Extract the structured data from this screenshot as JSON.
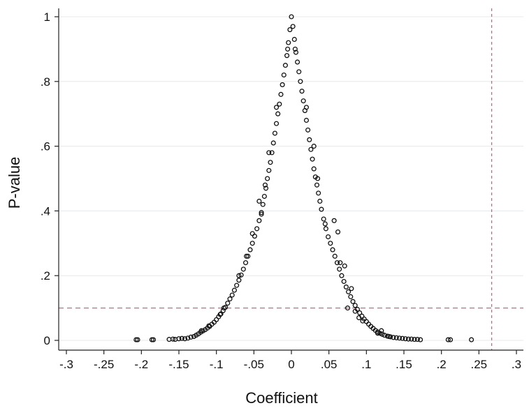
{
  "chart_data": {
    "type": "scatter",
    "title": "",
    "xlabel": "Coefficient",
    "ylabel": "P-value",
    "xlim": [
      -0.3,
      0.3
    ],
    "ylim": [
      0,
      1
    ],
    "x_ticks": [
      -0.3,
      -0.25,
      -0.2,
      -0.15,
      -0.1,
      -0.05,
      0,
      0.05,
      0.1,
      0.15,
      0.2,
      0.25,
      0.3
    ],
    "x_tick_labels": [
      "-.3",
      "-.25",
      "-.2",
      "-.15",
      "-.1",
      "-.05",
      "0",
      ".05",
      ".1",
      ".15",
      ".2",
      ".25",
      ".3"
    ],
    "y_ticks": [
      0,
      0.2,
      0.4,
      0.6,
      0.8,
      1
    ],
    "y_tick_labels": [
      "0",
      ".2",
      ".4",
      ".6",
      ".8",
      "1"
    ],
    "grid": "horizontal",
    "marker": "hollow-circle",
    "reference_lines": [
      {
        "orientation": "horizontal",
        "value": 0.1,
        "style": "dashed",
        "color": "#d4607c"
      },
      {
        "orientation": "vertical",
        "value": 0.267,
        "style": "dashed",
        "color": "#d4607c"
      }
    ],
    "series": [
      {
        "points": [
          [
            -0.207,
            0.002
          ],
          [
            -0.205,
            0.002
          ],
          [
            -0.186,
            0.002
          ],
          [
            -0.184,
            0.002
          ],
          [
            -0.163,
            0.003
          ],
          [
            -0.158,
            0.004
          ],
          [
            -0.155,
            0.003
          ],
          [
            -0.15,
            0.005
          ],
          [
            -0.146,
            0.006
          ],
          [
            -0.142,
            0.005
          ],
          [
            -0.138,
            0.007
          ],
          [
            -0.134,
            0.01
          ],
          [
            -0.13,
            0.012
          ],
          [
            -0.127,
            0.016
          ],
          [
            -0.124,
            0.02
          ],
          [
            -0.121,
            0.025
          ],
          [
            -0.118,
            0.029
          ],
          [
            -0.115,
            0.033
          ],
          [
            -0.112,
            0.038
          ],
          [
            -0.109,
            0.043
          ],
          [
            -0.106,
            0.05
          ],
          [
            -0.103,
            0.056
          ],
          [
            -0.1,
            0.064
          ],
          [
            -0.097,
            0.073
          ],
          [
            -0.094,
            0.082
          ],
          [
            -0.091,
            0.092
          ],
          [
            -0.088,
            0.102
          ],
          [
            -0.085,
            0.115
          ],
          [
            -0.082,
            0.128
          ],
          [
            -0.079,
            0.14
          ],
          [
            -0.076,
            0.155
          ],
          [
            -0.073,
            0.17
          ],
          [
            -0.07,
            0.186
          ],
          [
            -0.067,
            0.202
          ],
          [
            -0.064,
            0.22
          ],
          [
            -0.061,
            0.24
          ],
          [
            -0.058,
            0.26
          ],
          [
            -0.055,
            0.28
          ],
          [
            -0.052,
            0.3
          ],
          [
            -0.049,
            0.322
          ],
          [
            -0.046,
            0.345
          ],
          [
            -0.043,
            0.37
          ],
          [
            -0.04,
            0.395
          ],
          [
            -0.038,
            0.42
          ],
          [
            -0.036,
            0.445
          ],
          [
            -0.034,
            0.47
          ],
          [
            -0.032,
            0.5
          ],
          [
            -0.03,
            0.525
          ],
          [
            -0.028,
            0.55
          ],
          [
            -0.026,
            0.58
          ],
          [
            -0.024,
            0.61
          ],
          [
            -0.022,
            0.64
          ],
          [
            -0.02,
            0.67
          ],
          [
            -0.018,
            0.7
          ],
          [
            -0.016,
            0.73
          ],
          [
            -0.014,
            0.76
          ],
          [
            -0.012,
            0.79
          ],
          [
            -0.01,
            0.82
          ],
          [
            -0.008,
            0.85
          ],
          [
            -0.006,
            0.88
          ],
          [
            -0.004,
            0.92
          ],
          [
            -0.002,
            0.96
          ],
          [
            0,
            1.0
          ],
          [
            0.002,
            0.97
          ],
          [
            0.004,
            0.93
          ],
          [
            0.006,
            0.89
          ],
          [
            0.008,
            0.86
          ],
          [
            0.01,
            0.83
          ],
          [
            0.012,
            0.8
          ],
          [
            0.014,
            0.77
          ],
          [
            0.016,
            0.74
          ],
          [
            0.018,
            0.71
          ],
          [
            0.02,
            0.68
          ],
          [
            0.022,
            0.65
          ],
          [
            0.024,
            0.62
          ],
          [
            0.026,
            0.59
          ],
          [
            0.028,
            0.56
          ],
          [
            0.03,
            0.53
          ],
          [
            0.032,
            0.505
          ],
          [
            0.034,
            0.48
          ],
          [
            0.036,
            0.455
          ],
          [
            0.038,
            0.43
          ],
          [
            0.04,
            0.405
          ],
          [
            0.043,
            0.375
          ],
          [
            0.046,
            0.345
          ],
          [
            0.049,
            0.32
          ],
          [
            0.052,
            0.3
          ],
          [
            0.055,
            0.28
          ],
          [
            0.058,
            0.26
          ],
          [
            0.061,
            0.24
          ],
          [
            0.064,
            0.22
          ],
          [
            0.067,
            0.2
          ],
          [
            0.07,
            0.182
          ],
          [
            0.073,
            0.165
          ],
          [
            0.076,
            0.15
          ],
          [
            0.079,
            0.135
          ],
          [
            0.082,
            0.12
          ],
          [
            0.085,
            0.108
          ],
          [
            0.088,
            0.096
          ],
          [
            0.091,
            0.085
          ],
          [
            0.094,
            0.075
          ],
          [
            0.097,
            0.066
          ],
          [
            0.1,
            0.058
          ],
          [
            0.103,
            0.05
          ],
          [
            0.106,
            0.043
          ],
          [
            0.109,
            0.037
          ],
          [
            0.112,
            0.031
          ],
          [
            0.115,
            0.026
          ],
          [
            0.118,
            0.022
          ],
          [
            0.121,
            0.019
          ],
          [
            0.124,
            0.016
          ],
          [
            0.128,
            0.013
          ],
          [
            0.132,
            0.011
          ],
          [
            0.136,
            0.009
          ],
          [
            0.14,
            0.008
          ],
          [
            0.144,
            0.007
          ],
          [
            0.148,
            0.006
          ],
          [
            0.152,
            0.005
          ],
          [
            0.156,
            0.004
          ],
          [
            0.16,
            0.004
          ],
          [
            0.164,
            0.003
          ],
          [
            0.168,
            0.003
          ],
          [
            0.172,
            0.002
          ],
          [
            0.209,
            0.002
          ],
          [
            0.212,
            0.002
          ],
          [
            0.24,
            0.002
          ],
          [
            0.062,
            0.335
          ],
          [
            0.071,
            0.23
          ],
          [
            0.057,
            0.37
          ],
          [
            -0.043,
            0.43
          ],
          [
            -0.052,
            0.33
          ],
          [
            -0.03,
            0.58
          ],
          [
            0.03,
            0.6
          ],
          [
            0.02,
            0.72
          ],
          [
            -0.02,
            0.72
          ],
          [
            0.085,
            0.09
          ],
          [
            0.09,
            0.07
          ],
          [
            -0.09,
            0.1
          ],
          [
            0.08,
            0.16
          ],
          [
            -0.07,
            0.2
          ],
          [
            0.045,
            0.36
          ],
          [
            -0.04,
            0.39
          ],
          [
            0.075,
            0.1
          ],
          [
            0.115,
            0.022
          ],
          [
            0.12,
            0.03
          ],
          [
            -0.12,
            0.03
          ],
          [
            -0.11,
            0.045
          ],
          [
            0.005,
            0.9
          ],
          [
            -0.005,
            0.9
          ],
          [
            0.035,
            0.5
          ],
          [
            -0.035,
            0.48
          ],
          [
            0.065,
            0.24
          ],
          [
            -0.06,
            0.26
          ],
          [
            0.095,
            0.06
          ],
          [
            -0.095,
            0.08
          ],
          [
            0.13,
            0.012
          ]
        ]
      }
    ]
  }
}
